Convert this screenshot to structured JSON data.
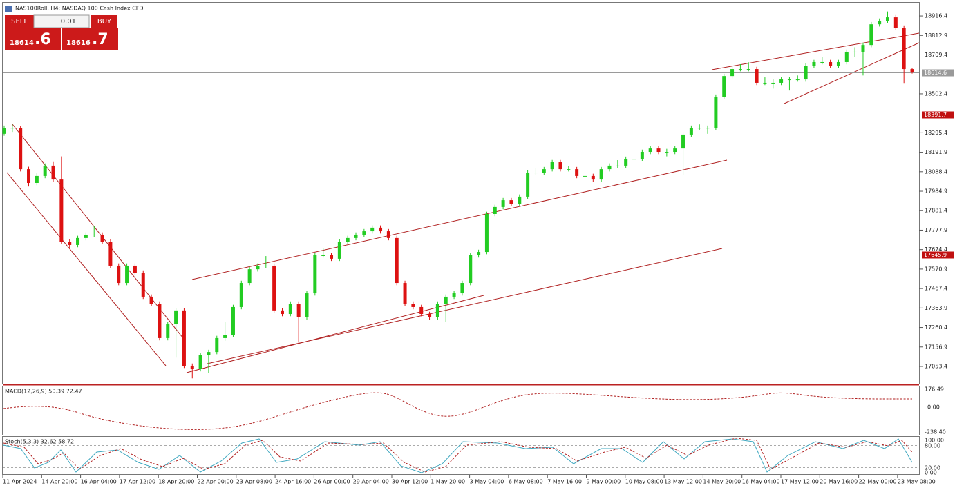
{
  "header": {
    "title": "NAS100Roll, H4:  NASDAQ 100 Cash Index CFD"
  },
  "trade_panel": {
    "sell": "SELL",
    "buy": "BUY",
    "lot": "0.01",
    "sell_main": "18614",
    "sell_frac": ".6",
    "buy_main": "18616",
    "buy_frac": ".7"
  },
  "chart_data": {
    "type": "candlestick",
    "up_color": "#22cc22",
    "down_color": "#dd1111",
    "ylim": [
      16958,
      18990
    ],
    "yticks": [
      18916.4,
      18812.9,
      18709.4,
      18502.4,
      18295.4,
      18191.9,
      18088.4,
      17984.9,
      17881.4,
      17777.9,
      17674.4,
      17570.9,
      17467.4,
      17363.9,
      17260.4,
      17156.9,
      17053.4
    ],
    "hlines": [
      {
        "value": 18614.6,
        "color": "#9a9a9a"
      },
      {
        "value": 18391.7,
        "color": "#c01010"
      },
      {
        "value": 17645.9,
        "color": "#c01010"
      }
    ],
    "categories": [
      "11 Apr 2024",
      "14 Apr 20:00",
      "16 Apr 04:00",
      "17 Apr 12:00",
      "18 Apr 20:00",
      "22 Apr 00:00",
      "23 Apr 08:00",
      "24 Apr 16:00",
      "26 Apr 00:00",
      "29 Apr 04:00",
      "30 Apr 12:00",
      "1 May 20:00",
      "3 May 04:00",
      "6 May 08:00",
      "7 May 16:00",
      "9 May 00:00",
      "10 May 08:00",
      "13 May 12:00",
      "14 May 20:00",
      "16 May 04:00",
      "17 May 12:00",
      "20 May 16:00",
      "22 May 00:00",
      "23 May 08:00"
    ],
    "candles": [
      [
        18290,
        18334,
        18280,
        18322
      ],
      [
        18322,
        18340,
        18300,
        18322
      ],
      [
        18322,
        18330,
        18090,
        18102
      ],
      [
        18102,
        18115,
        18010,
        18029
      ],
      [
        18029,
        18080,
        18017,
        18066
      ],
      [
        18066,
        18133,
        18054,
        18121
      ],
      [
        18121,
        18140,
        18035,
        18047
      ],
      [
        18047,
        18170,
        17705,
        17717
      ],
      [
        17717,
        17730,
        17680,
        17699
      ],
      [
        17699,
        17748,
        17687,
        17736
      ],
      [
        17736,
        17766,
        17724,
        17754
      ],
      [
        17754,
        17800,
        17742,
        17754
      ],
      [
        17754,
        17766,
        17705,
        17717
      ],
      [
        17717,
        17729,
        17577,
        17589
      ],
      [
        17589,
        17601,
        17485,
        17497
      ],
      [
        17497,
        17601,
        17485,
        17589
      ],
      [
        17589,
        17601,
        17540,
        17552
      ],
      [
        17552,
        17564,
        17412,
        17424
      ],
      [
        17424,
        17436,
        17375,
        17387
      ],
      [
        17387,
        17399,
        17192,
        17204
      ],
      [
        17204,
        17289,
        17192,
        17277
      ],
      [
        17277,
        17363,
        17100,
        17351
      ],
      [
        17351,
        17363,
        17045,
        17057
      ],
      [
        17057,
        17069,
        16990,
        17039
      ],
      [
        17039,
        17124,
        17027,
        17112
      ],
      [
        17112,
        17142,
        17020,
        17130
      ],
      [
        17130,
        17216,
        17118,
        17204
      ],
      [
        17204,
        17290,
        17190,
        17222
      ],
      [
        17222,
        17381,
        17210,
        17369
      ],
      [
        17369,
        17509,
        17357,
        17497
      ],
      [
        17497,
        17582,
        17485,
        17570
      ],
      [
        17570,
        17601,
        17558,
        17589
      ],
      [
        17589,
        17640,
        17577,
        17589
      ],
      [
        17589,
        17601,
        17339,
        17351
      ],
      [
        17351,
        17363,
        17320,
        17332
      ],
      [
        17332,
        17399,
        17320,
        17387
      ],
      [
        17387,
        17399,
        17180,
        17314
      ],
      [
        17314,
        17454,
        17302,
        17442
      ],
      [
        17442,
        17656,
        17430,
        17644
      ],
      [
        17644,
        17680,
        17632,
        17644
      ],
      [
        17644,
        17656,
        17614,
        17626
      ],
      [
        17626,
        17729,
        17614,
        17717
      ],
      [
        17717,
        17748,
        17705,
        17736
      ],
      [
        17736,
        17766,
        17724,
        17754
      ],
      [
        17754,
        17784,
        17742,
        17772
      ],
      [
        17772,
        17803,
        17760,
        17791
      ],
      [
        17791,
        17803,
        17760,
        17772
      ],
      [
        17772,
        17784,
        17724,
        17736
      ],
      [
        17736,
        17748,
        17485,
        17497
      ],
      [
        17497,
        17509,
        17375,
        17387
      ],
      [
        17387,
        17399,
        17357,
        17369
      ],
      [
        17369,
        17381,
        17320,
        17332
      ],
      [
        17332,
        17344,
        17302,
        17314
      ],
      [
        17314,
        17399,
        17302,
        17387
      ],
      [
        17387,
        17436,
        17290,
        17424
      ],
      [
        17424,
        17454,
        17412,
        17442
      ],
      [
        17442,
        17509,
        17430,
        17497
      ],
      [
        17497,
        17656,
        17485,
        17644
      ],
      [
        17644,
        17674,
        17632,
        17662
      ],
      [
        17662,
        17876,
        17650,
        17864
      ],
      [
        17864,
        17913,
        17852,
        17901
      ],
      [
        17901,
        17949,
        17889,
        17937
      ],
      [
        17937,
        17949,
        17907,
        17919
      ],
      [
        17919,
        17968,
        17907,
        17956
      ],
      [
        17956,
        18096,
        17944,
        18084
      ],
      [
        18084,
        18110,
        18072,
        18084
      ],
      [
        18084,
        18114,
        18072,
        18102
      ],
      [
        18102,
        18151,
        18090,
        18139
      ],
      [
        18139,
        18151,
        18090,
        18102
      ],
      [
        18102,
        18120,
        18090,
        18102
      ],
      [
        18102,
        18114,
        18054,
        18066
      ],
      [
        18066,
        18078,
        17990,
        18066
      ],
      [
        18066,
        18078,
        18035,
        18047
      ],
      [
        18047,
        18114,
        18035,
        18102
      ],
      [
        18102,
        18133,
        18090,
        18121
      ],
      [
        18121,
        18150,
        18109,
        18121
      ],
      [
        18121,
        18169,
        18109,
        18157
      ],
      [
        18157,
        18240,
        18145,
        18157
      ],
      [
        18157,
        18206,
        18145,
        18194
      ],
      [
        18194,
        18224,
        18182,
        18212
      ],
      [
        18212,
        18224,
        18182,
        18194
      ],
      [
        18194,
        18210,
        18170,
        18194
      ],
      [
        18194,
        18224,
        18182,
        18212
      ],
      [
        18212,
        18298,
        18070,
        18286
      ],
      [
        18286,
        18334,
        18274,
        18322
      ],
      [
        18322,
        18340,
        18310,
        18322
      ],
      [
        18322,
        18334,
        18290,
        18322
      ],
      [
        18322,
        18499,
        18310,
        18487
      ],
      [
        18487,
        18609,
        18475,
        18597
      ],
      [
        18597,
        18646,
        18585,
        18634
      ],
      [
        18634,
        18660,
        18622,
        18634
      ],
      [
        18634,
        18670,
        18622,
        18634
      ],
      [
        18634,
        18646,
        18549,
        18561
      ],
      [
        18561,
        18590,
        18549,
        18561
      ],
      [
        18561,
        18580,
        18530,
        18561
      ],
      [
        18561,
        18591,
        18549,
        18579
      ],
      [
        18579,
        18591,
        18520,
        18579
      ],
      [
        18579,
        18600,
        18567,
        18579
      ],
      [
        18579,
        18664,
        18567,
        18652
      ],
      [
        18652,
        18683,
        18640,
        18671
      ],
      [
        18671,
        18700,
        18659,
        18671
      ],
      [
        18671,
        18683,
        18640,
        18652
      ],
      [
        18652,
        18683,
        18640,
        18671
      ],
      [
        18671,
        18738,
        18659,
        18726
      ],
      [
        18726,
        18750,
        18700,
        18726
      ],
      [
        18726,
        18774,
        18600,
        18762
      ],
      [
        18762,
        18884,
        18750,
        18872
      ],
      [
        18872,
        18903,
        18860,
        18891
      ],
      [
        18891,
        18940,
        18879,
        18909
      ],
      [
        18909,
        18921,
        18842,
        18854
      ],
      [
        18854,
        18866,
        18560,
        18634
      ],
      [
        18634,
        18640,
        18610,
        18616
      ]
    ]
  },
  "macd": {
    "label": "MACD(12,26,9) 50.39 72.47",
    "ticks": [
      "176.49",
      "0.00",
      "-238.40"
    ]
  },
  "stoch": {
    "label": "Stoch(5,3,3) 32.62 58.72",
    "ticks": [
      "100.00",
      "80.00",
      "20.00",
      "0.00"
    ]
  }
}
